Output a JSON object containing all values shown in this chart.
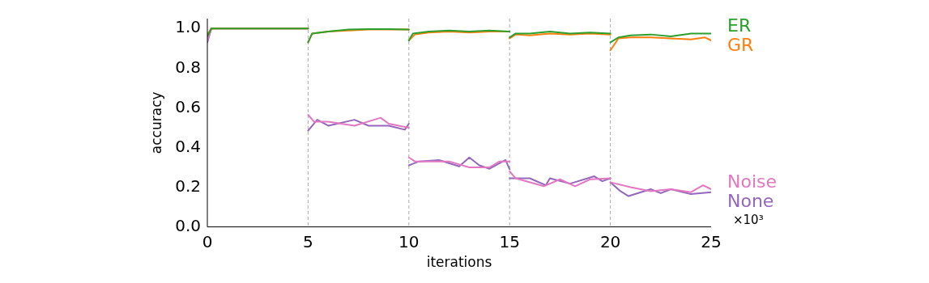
{
  "chart_data": {
    "type": "line",
    "xlabel": "iterations",
    "ylabel": "accuracy",
    "xlim": [
      0,
      25
    ],
    "xticks": [
      0,
      5,
      10,
      15,
      20,
      25
    ],
    "ylim": [
      0,
      1.05
    ],
    "yticks": [
      {
        "value": 0,
        "label": "0.0"
      },
      {
        "value": 0.2,
        "label": "0.2"
      },
      {
        "value": 0.4,
        "label": "0.4"
      },
      {
        "value": 0.6,
        "label": "0.6"
      },
      {
        "value": 0.8,
        "label": "0.8"
      },
      {
        "value": 1,
        "label": "1.0"
      }
    ],
    "grid": false,
    "legend": "right",
    "marker": "none",
    "line_style": "solid",
    "ref_lines": [
      {
        "axis": "x",
        "value": 5,
        "color": "#aaaaaa",
        "line_style": "dashed"
      },
      {
        "axis": "x",
        "value": 10,
        "color": "#aaaaaa",
        "line_style": "dashed"
      },
      {
        "axis": "x",
        "value": 15,
        "color": "#aaaaaa",
        "line_style": "dashed"
      },
      {
        "axis": "x",
        "value": 20,
        "color": "#aaaaaa",
        "line_style": "dashed"
      }
    ],
    "annotations": [
      "×10³"
    ],
    "series": [
      {
        "name": "ER",
        "color": "#2ca02c",
        "x": [
          0,
          0.2,
          5,
          5,
          5.2,
          6,
          7,
          8,
          9,
          10,
          10,
          10.2,
          11,
          12,
          13,
          14,
          15,
          15,
          15.3,
          16,
          17,
          18,
          19,
          20,
          20,
          20.4,
          21,
          22,
          23,
          24,
          25
        ],
        "values": [
          0.96,
          1,
          1,
          0.93,
          0.975,
          0.985,
          0.995,
          0.997,
          0.997,
          0.995,
          0.94,
          0.975,
          0.985,
          0.99,
          0.985,
          0.99,
          0.985,
          0.955,
          0.975,
          0.975,
          0.985,
          0.975,
          0.98,
          0.975,
          0.93,
          0.955,
          0.965,
          0.97,
          0.96,
          0.975,
          0.975
        ]
      },
      {
        "name": "GR",
        "color": "#ff7f0e",
        "x": [
          0,
          0.2,
          5,
          5,
          5.2,
          6,
          7,
          8,
          9,
          10,
          10,
          10.3,
          11,
          12,
          13,
          14,
          15,
          15,
          15.3,
          16,
          17,
          18,
          19,
          20,
          20,
          20.4,
          21,
          22,
          23,
          24,
          24.7,
          25
        ],
        "values": [
          0.97,
          1,
          1,
          0.93,
          0.975,
          0.985,
          0.99,
          0.995,
          0.995,
          0.995,
          0.94,
          0.97,
          0.98,
          0.985,
          0.98,
          0.985,
          0.985,
          0.95,
          0.97,
          0.965,
          0.975,
          0.97,
          0.975,
          0.97,
          0.89,
          0.95,
          0.955,
          0.955,
          0.95,
          0.945,
          0.955,
          0.94
        ]
      },
      {
        "name": "Noise",
        "color": "#e377c2",
        "x": [
          0,
          0.2,
          5,
          5,
          5.3,
          6,
          7.3,
          8.6,
          9,
          10,
          10,
          10.3,
          11,
          12,
          13,
          14,
          14.5,
          15,
          15,
          15.3,
          16.7,
          17.5,
          18.25,
          19,
          20,
          20,
          21,
          22,
          23,
          24,
          24.6,
          25
        ],
        "values": [
          0.94,
          1,
          1,
          0.565,
          0.53,
          0.53,
          0.51,
          0.55,
          0.52,
          0.5,
          0.35,
          0.33,
          0.33,
          0.33,
          0.3,
          0.3,
          0.33,
          0.33,
          0.28,
          0.245,
          0.205,
          0.24,
          0.205,
          0.24,
          0.245,
          0.225,
          0.2,
          0.18,
          0.19,
          0.175,
          0.21,
          0.19
        ]
      },
      {
        "name": "None",
        "color": "#9467bd",
        "x": [
          0,
          0.2,
          5,
          5,
          5.45,
          6,
          7.3,
          8,
          9,
          9.8,
          10,
          10,
          10.5,
          11.5,
          12.5,
          13,
          13.5,
          14,
          14.8,
          15,
          15,
          16,
          16.8,
          17,
          18,
          19.2,
          19.6,
          20,
          20,
          20.5,
          20.9,
          22,
          22.5,
          23,
          24,
          25
        ],
        "values": [
          0.93,
          1,
          1,
          0.485,
          0.54,
          0.51,
          0.54,
          0.51,
          0.51,
          0.49,
          0.52,
          0.31,
          0.33,
          0.337,
          0.305,
          0.35,
          0.31,
          0.293,
          0.337,
          0.29,
          0.245,
          0.245,
          0.21,
          0.245,
          0.218,
          0.255,
          0.23,
          0.245,
          0.225,
          0.18,
          0.155,
          0.19,
          0.17,
          0.19,
          0.165,
          0.175
        ]
      }
    ]
  }
}
